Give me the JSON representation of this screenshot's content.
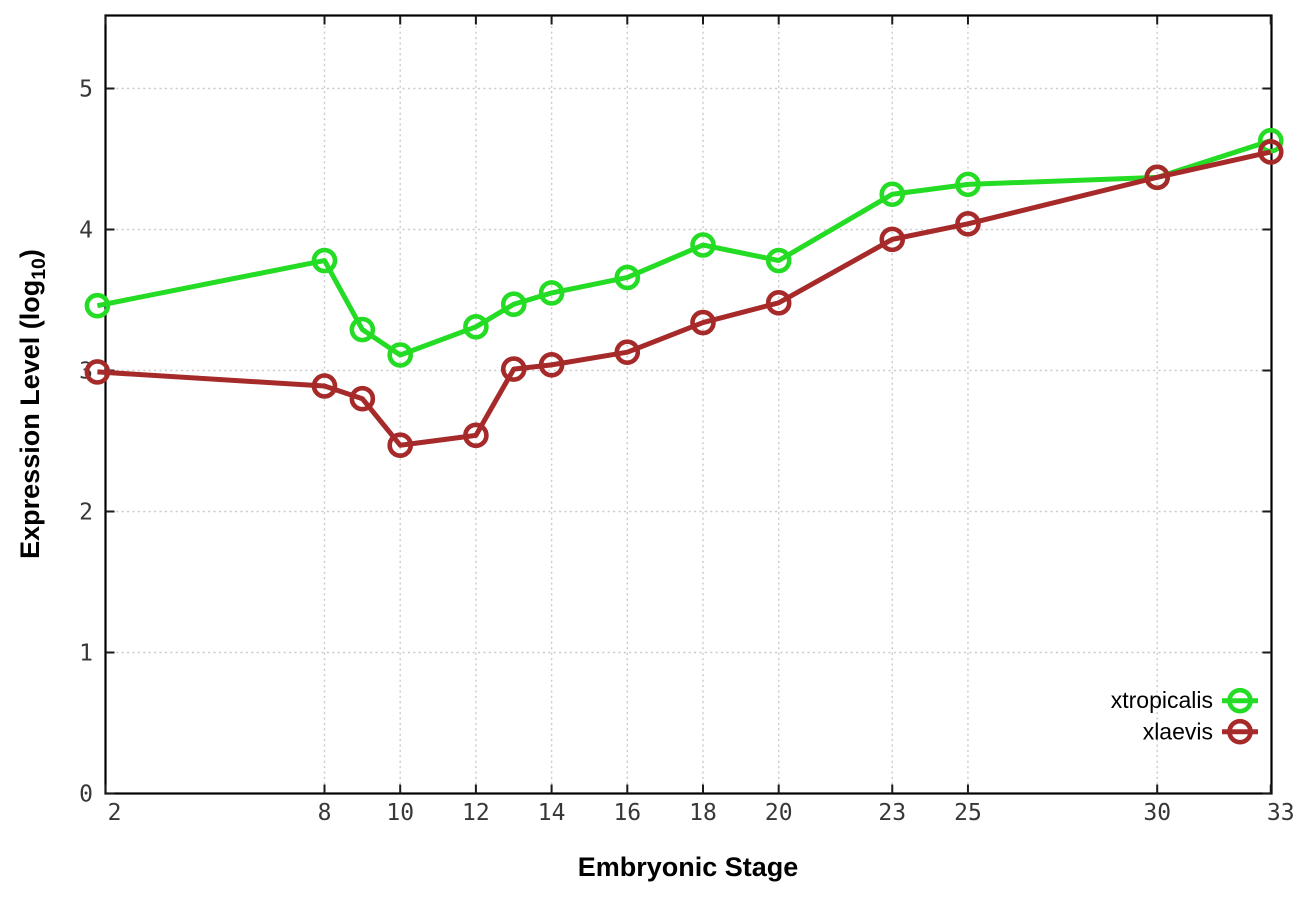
{
  "figure": {
    "background": "#ffffff",
    "xlabel": "Embryonic Stage",
    "ylabel_prefix": "Expression Level (log",
    "ylabel_sub": "10",
    "ylabel_suffix": ")"
  },
  "chart_data": {
    "type": "line",
    "title": "",
    "xlabel": "Embryonic Stage",
    "ylabel": "Expression Level (log10)",
    "x_tick_labels": [
      2,
      8,
      10,
      12,
      14,
      16,
      18,
      20,
      23,
      25,
      30,
      33
    ],
    "y_tick_labels": [
      0,
      1,
      2,
      3,
      4,
      5
    ],
    "xlim": [
      2.2,
      33
    ],
    "ylim": [
      0,
      5.5
    ],
    "grid": true,
    "legend_position": "inside lower right",
    "marker": "open-circle",
    "series": [
      {
        "name": "xtropicalis",
        "color": "#23dc23",
        "x": [
          2,
          8,
          9,
          10,
          12,
          13,
          14,
          16,
          18,
          20,
          23,
          25,
          30,
          33
        ],
        "y": [
          3.46,
          3.78,
          3.29,
          3.11,
          3.31,
          3.47,
          3.55,
          3.66,
          3.89,
          3.78,
          4.25,
          4.32,
          4.37,
          4.63
        ]
      },
      {
        "name": "xlaevis",
        "color": "#a62a2a",
        "x": [
          2,
          8,
          9,
          10,
          12,
          13,
          14,
          16,
          18,
          20,
          23,
          25,
          30,
          33
        ],
        "y": [
          2.99,
          2.89,
          2.8,
          2.47,
          2.54,
          3.01,
          3.04,
          3.13,
          3.34,
          3.48,
          3.93,
          4.04,
          4.37,
          4.55
        ]
      }
    ],
    "style": {
      "grid_color": "#c9c9c9",
      "border_color": "#000000",
      "tick_label_color": "#373737",
      "line_width": 5,
      "marker_radius": 10.5
    }
  }
}
